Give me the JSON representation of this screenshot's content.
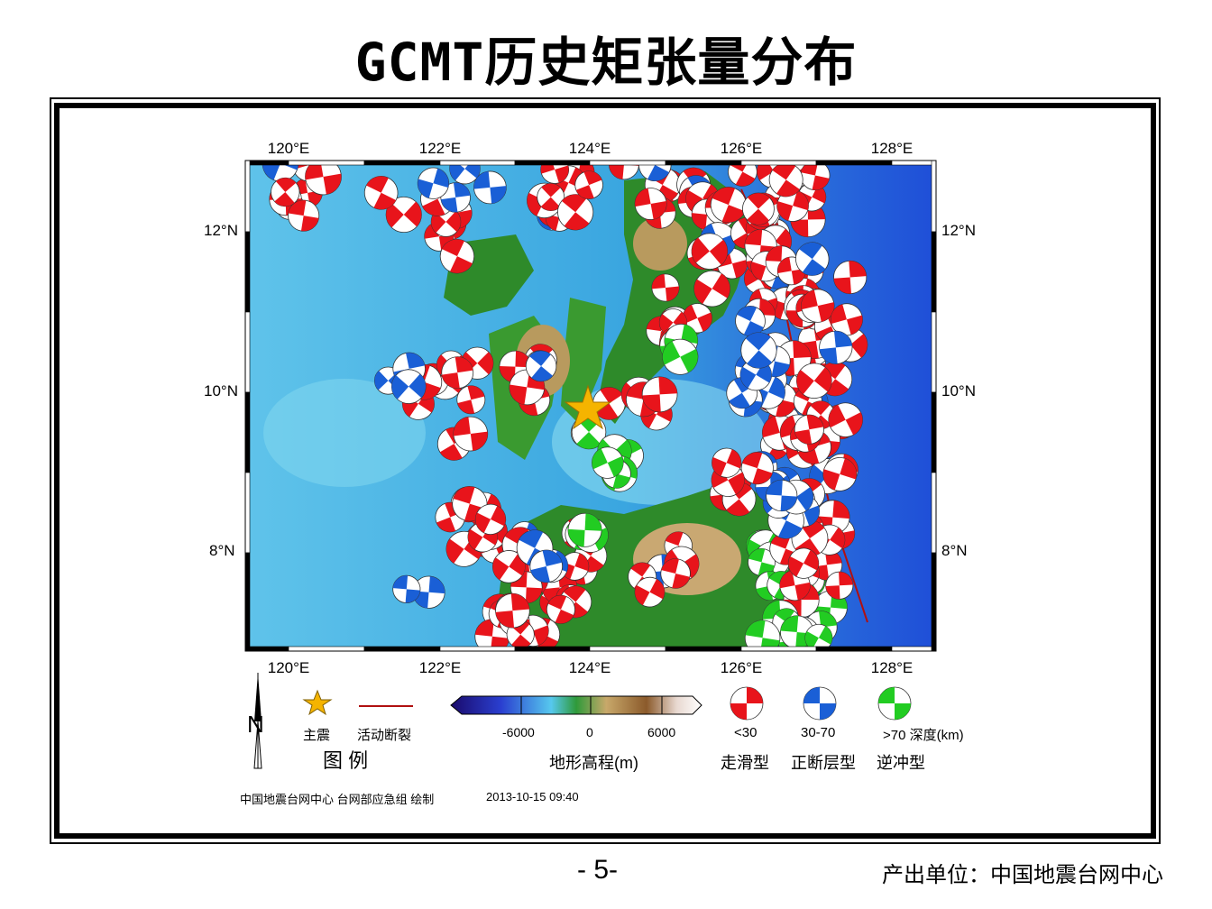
{
  "title": "GCMT历史矩张量分布",
  "map": {
    "lon_ticks": [
      "120°E",
      "122°E",
      "124°E",
      "126°E",
      "128°E"
    ],
    "lat_ticks": [
      "12°N",
      "10°N",
      "8°N"
    ],
    "colors": {
      "strike_slip": "#e8141b",
      "normal": "#1a5fd6",
      "thrust": "#22cc22",
      "star": "#f5b400",
      "fault": "#b01010",
      "deep_sea": "#1f4fd8",
      "sea": "#3aa6e0",
      "land_low": "#2e8a2a",
      "land_high": "#c9a872"
    }
  },
  "legend": {
    "north_label": "N",
    "mainshock_label": "主震",
    "fault_label": "活动断裂",
    "legend_title": "图  例",
    "elevation_ticks": [
      "-6000",
      "0",
      "6000"
    ],
    "elevation_label": "地形高程(m)",
    "depth_labels": [
      "<30",
      "30-70",
      ">70 深度(km)"
    ],
    "mechanism_labels": [
      "走滑型",
      "正断层型",
      "逆冲型"
    ]
  },
  "credit": "中国地震台网中心 台网部应急组 绘制",
  "timestamp": "2013-10-15 09:40",
  "page_number": "- 5-",
  "producer": "产出单位：中国地震台网中心"
}
